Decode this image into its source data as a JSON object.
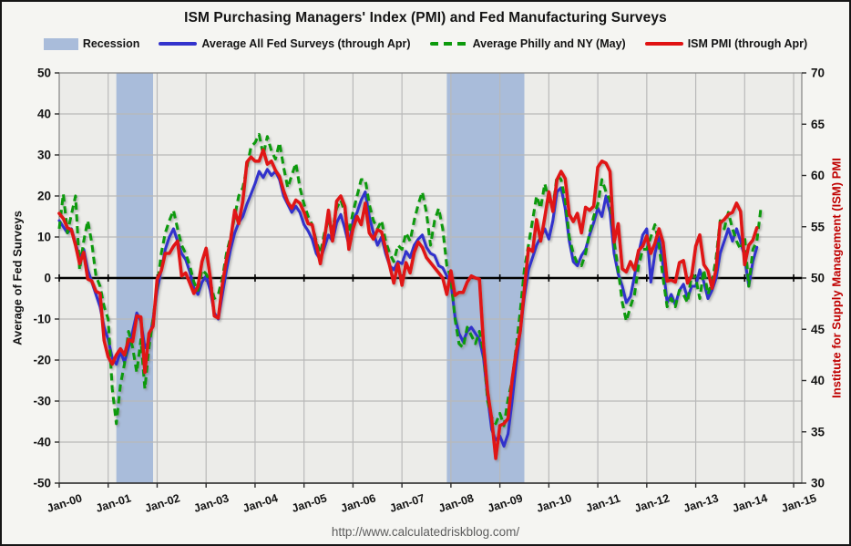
{
  "chart_data": {
    "type": "line",
    "title": "ISM Purchasing Managers' Index (PMI) and Fed Manufacturing Surveys",
    "x_axis": {
      "start_month": "2000-01",
      "domain_months": 182,
      "tick_every_months": 12,
      "tick_labels": [
        "Jan-00",
        "Jan-01",
        "Jan-02",
        "Jan-03",
        "Jan-04",
        "Jan-05",
        "Jan-06",
        "Jan-07",
        "Jan-08",
        "Jan-09",
        "Jan-10",
        "Jan-11",
        "Jan-12",
        "Jan-13",
        "Jan-14",
        "Jan-15"
      ]
    },
    "y_left": {
      "label": "Average of Fed Surveys",
      "min": -50,
      "max": 50,
      "tick_step": 10,
      "ticks": [
        50,
        40,
        30,
        20,
        10,
        0,
        -10,
        -20,
        -30,
        -40,
        -50
      ]
    },
    "y_right": {
      "label": "Institute for Supply Management (ISM) PMI",
      "min": 30,
      "max": 70,
      "tick_step": 5,
      "ticks": [
        70,
        65,
        60,
        55,
        50,
        45,
        40,
        35,
        30
      ],
      "color": "#c00000"
    },
    "grid": true,
    "zero_line": true,
    "legend": [
      {
        "label": "Recession",
        "type": "band",
        "color": "#a9bcda"
      },
      {
        "label": "Average All Fed Surveys (through Apr)",
        "type": "line",
        "color": "#3333cc"
      },
      {
        "label": "Average Philly and NY (May)",
        "type": "dashed-line",
        "color": "#0c9a0c"
      },
      {
        "label": "ISM PMI (through Apr)",
        "type": "line",
        "color": "#e01212"
      }
    ],
    "recessions": [
      {
        "start": "2001-03",
        "end": "2001-11"
      },
      {
        "start": "2007-12",
        "end": "2009-06"
      }
    ],
    "series": [
      {
        "name": "Average All Fed Surveys (through Apr)",
        "axis": "left",
        "color": "#3333cc",
        "style": "solid",
        "start_month": "2000-01",
        "values": [
          14,
          12.5,
          11,
          12,
          8.5,
          5,
          7,
          2,
          -1,
          -4,
          -7,
          -12,
          -15,
          -19.5,
          -21,
          -18,
          -20.5,
          -17,
          -13,
          -8.5,
          -10.5,
          -17,
          -15.5,
          -10,
          -3,
          2,
          7,
          10,
          12,
          9,
          6,
          4.5,
          1.5,
          -2.5,
          -4,
          -1,
          0.5,
          -3,
          -8.5,
          -10,
          -4,
          2,
          7,
          11,
          13.5,
          15,
          18,
          20.5,
          23,
          26,
          24.5,
          26.5,
          25,
          26,
          24,
          20,
          18,
          16,
          17.5,
          16,
          13,
          11.5,
          9.5,
          6,
          4.5,
          7.5,
          10.5,
          9,
          13.5,
          15.5,
          12,
          8,
          14,
          16,
          19,
          21,
          15,
          11,
          8,
          10,
          6,
          3,
          2,
          4,
          3.5,
          6.5,
          5,
          8,
          9.5,
          10.5,
          7.5,
          6,
          5.5,
          3,
          2.5,
          0.5,
          -1,
          -9.5,
          -13.5,
          -15.5,
          -13,
          -12,
          -13.5,
          -15,
          -19.5,
          -29,
          -37,
          -39.5,
          -38.5,
          -41,
          -38,
          -30,
          -21,
          -13,
          -4.5,
          2,
          5,
          8,
          10,
          12,
          9.5,
          14,
          21,
          22,
          17,
          9,
          4,
          3,
          5.5,
          7,
          10.5,
          13.5,
          17,
          15,
          20,
          16,
          6,
          1,
          -2,
          -6,
          -4.5,
          0.5,
          6,
          10.5,
          12,
          -1,
          6,
          10,
          3,
          -6,
          -4,
          -6.5,
          -3,
          -1.5,
          -5,
          -2,
          -2,
          2,
          -1,
          -5,
          -3,
          0,
          6,
          9,
          12,
          9,
          12,
          9,
          5,
          -2,
          4,
          7.5
        ]
      },
      {
        "name": "Average Philly and NY (May)",
        "axis": "left",
        "color": "#0c9a0c",
        "style": "dashed",
        "start_month": "2000-01",
        "values": [
          12,
          20.5,
          11,
          15.5,
          20,
          2,
          9,
          14,
          8.5,
          0.5,
          -2,
          -7,
          -10,
          -27,
          -35.5,
          -26,
          -21,
          -13,
          -17,
          -23,
          -15,
          -27,
          -17,
          -10,
          -2,
          6,
          11,
          14,
          16.5,
          12,
          8,
          6,
          3,
          -1,
          -3,
          2,
          1,
          -1,
          -5,
          -4,
          0,
          6,
          10,
          15,
          20,
          22,
          27,
          32,
          33,
          35,
          30,
          34.5,
          31,
          29,
          33,
          27,
          22,
          25,
          28,
          22,
          18,
          15,
          13,
          9,
          6,
          11,
          14,
          12,
          17,
          19,
          16,
          11,
          16,
          20,
          24,
          24,
          18,
          14,
          12,
          14,
          9,
          6,
          4,
          8,
          7,
          11,
          9,
          14,
          18,
          21,
          16,
          8,
          14,
          17,
          12,
          3,
          0,
          -10,
          -16,
          -17,
          -12,
          -14,
          -16,
          -13,
          -18,
          -30,
          -34,
          -35.5,
          -33,
          -36,
          -29.5,
          -25,
          -17,
          -8,
          2,
          8,
          14,
          20,
          17,
          23,
          19,
          17,
          25,
          24,
          19,
          10,
          6,
          3.5,
          3,
          6,
          11,
          15,
          18,
          24,
          21,
          19,
          9,
          2,
          -6,
          -10.5,
          -7,
          -4,
          3,
          7,
          7,
          10,
          13,
          8,
          0,
          -7,
          -5,
          -7,
          -3,
          -4,
          -6,
          1,
          0,
          -5,
          2,
          -4,
          -1,
          5,
          14,
          12,
          16,
          12,
          9,
          7,
          10,
          -2,
          7,
          9,
          17.2
        ]
      },
      {
        "name": "ISM PMI (through Apr)",
        "axis": "right",
        "color": "#e01212",
        "style": "solid",
        "start_month": "2000-01",
        "values": [
          56.3,
          55.8,
          54.9,
          54.7,
          53.2,
          51.4,
          52.5,
          49.9,
          49.7,
          48.7,
          48.5,
          43.9,
          42.3,
          41.6,
          42.5,
          43.1,
          42.5,
          44.0,
          43.8,
          46.3,
          46.2,
          40.8,
          44.6,
          45.3,
          49.9,
          50.7,
          52.4,
          52.4,
          53.1,
          53.6,
          50.2,
          50.5,
          49.5,
          48.5,
          49.2,
          51.6,
          52.9,
          50.1,
          46.3,
          46.1,
          49.4,
          51.8,
          53.7,
          56.6,
          55.3,
          57.5,
          61.3,
          61.8,
          61.4,
          61.4,
          62.5,
          61.1,
          61.4,
          60.5,
          59.9,
          58.5,
          57.4,
          56.8,
          57.6,
          57.3,
          56.4,
          55.3,
          55.2,
          53.3,
          51.4,
          53.8,
          56.6,
          53.6,
          57.5,
          58.0,
          57.0,
          52.8,
          54.8,
          56.0,
          55.2,
          57.3,
          54.4,
          53.8,
          54.7,
          54.5,
          52.9,
          51.2,
          49.5,
          51.4,
          49.3,
          51.5,
          50.5,
          52.5,
          53.5,
          53.0,
          52.0,
          51.5,
          51.0,
          50.5,
          50.0,
          48.4,
          50.7,
          48.3,
          48.6,
          48.6,
          49.6,
          50.2,
          50.0,
          49.9,
          43.5,
          38.9,
          36.2,
          32.4,
          35.6,
          35.8,
          36.3,
          40.1,
          42.8,
          44.8,
          48.9,
          52.9,
          52.6,
          55.7,
          53.6,
          55.9,
          58.4,
          56.5,
          59.6,
          60.4,
          59.7,
          56.2,
          55.5,
          56.3,
          54.4,
          56.9,
          56.6,
          57.0,
          60.8,
          61.4,
          61.2,
          60.4,
          53.5,
          55.3,
          50.9,
          50.6,
          51.6,
          50.8,
          52.7,
          53.1,
          54.1,
          52.4,
          53.4,
          54.8,
          53.5,
          49.7,
          49.8,
          49.6,
          51.5,
          51.7,
          49.5,
          50.2,
          53.1,
          54.2,
          51.3,
          50.7,
          49.0,
          50.9,
          55.4,
          55.7,
          56.2,
          56.4,
          57.3,
          56.5,
          51.3,
          53.2,
          53.7,
          54.9
        ]
      }
    ]
  },
  "footer": {
    "url": "http://www.calculatedriskblog.com/"
  },
  "colors": {
    "figure_bg": "#f5f5f2",
    "plot_bg": "#ececе9",
    "grid": "#b9b9b9",
    "recession_band": "#a9bcda",
    "zero_line": "#000000",
    "axis_line": "#8a8a8a",
    "tick_text": "#141414",
    "right_axis_text": "#c00000",
    "url_text": "#5d5d5d"
  }
}
